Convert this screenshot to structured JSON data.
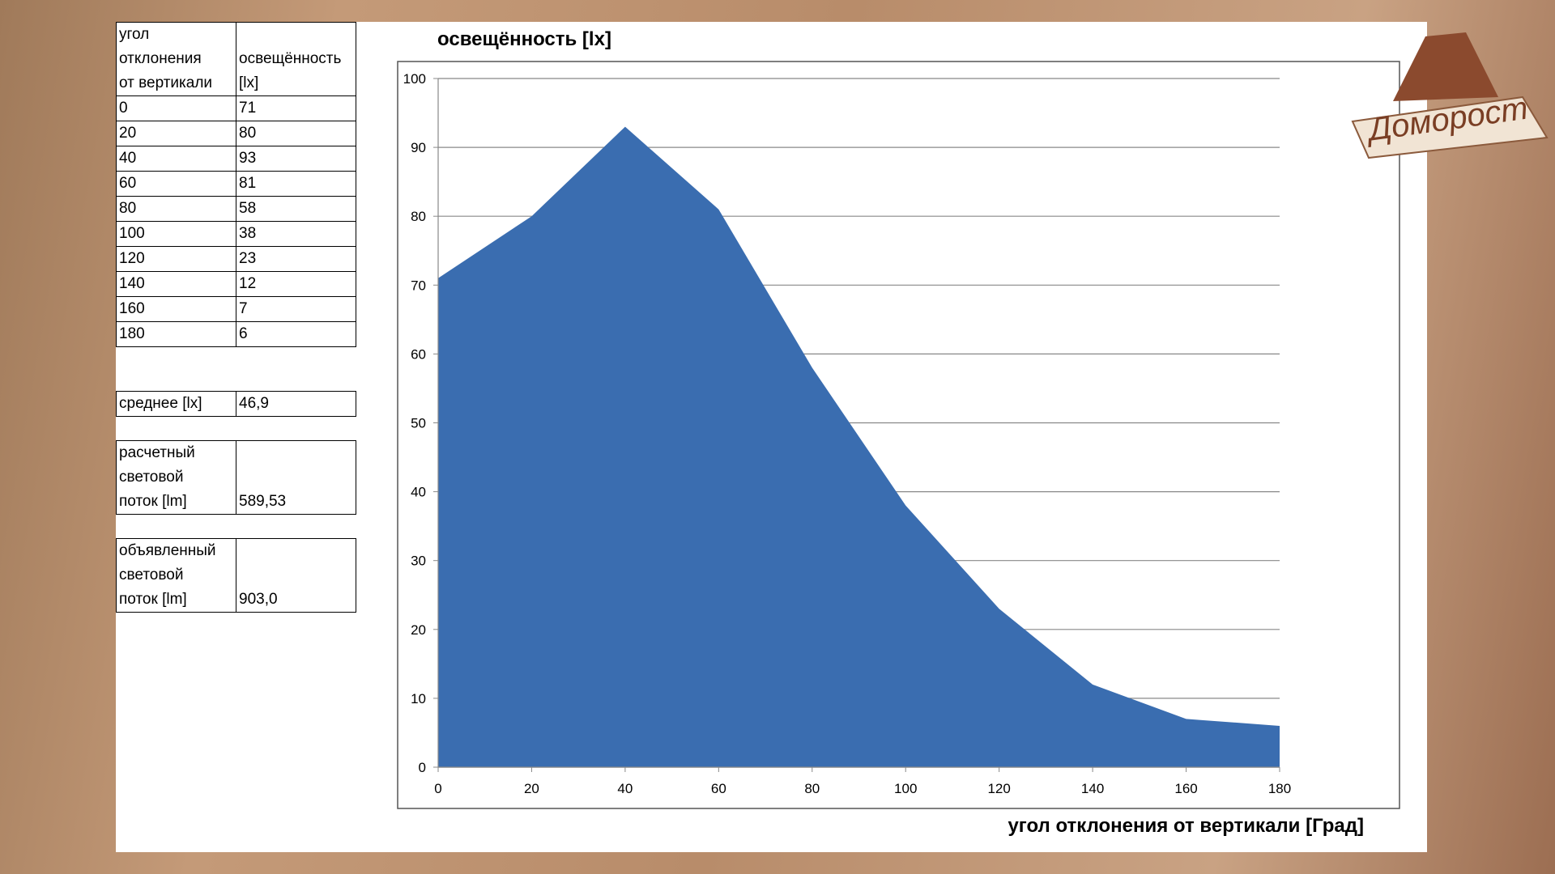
{
  "table": {
    "header": [
      [
        "угол",
        "отклонения",
        "от вертикали"
      ],
      [
        "освещённость",
        "[lx]"
      ]
    ],
    "rows": [
      [
        "0",
        "71"
      ],
      [
        "20",
        "80"
      ],
      [
        "40",
        "93"
      ],
      [
        "60",
        "81"
      ],
      [
        "80",
        "58"
      ],
      [
        "100",
        "38"
      ],
      [
        "120",
        "23"
      ],
      [
        "140",
        "12"
      ],
      [
        "160",
        "7"
      ],
      [
        "180",
        "6"
      ]
    ]
  },
  "summary": [
    {
      "label": [
        "среднее  [lx]"
      ],
      "value": "46,9"
    },
    {
      "label": [
        "расчетный",
        "световой",
        "поток  [lm]"
      ],
      "value": "589,53"
    },
    {
      "label": [
        "объявленный",
        "световой",
        "поток  [lm]"
      ],
      "value": "903,0"
    }
  ],
  "logo": "Доморост",
  "chart_data": {
    "type": "area",
    "title": "освещённость [lx]",
    "x_label": "угол отклонения от вертикали  [Град]",
    "x": [
      0,
      20,
      40,
      60,
      80,
      100,
      120,
      140,
      160,
      180
    ],
    "values": [
      71,
      80,
      93,
      81,
      58,
      38,
      23,
      12,
      7,
      6
    ],
    "color": "#3a6db0",
    "xlim": [
      0,
      180
    ],
    "xticks": [
      0,
      20,
      40,
      60,
      80,
      100,
      120,
      140,
      160,
      180
    ],
    "ylim": [
      0,
      100
    ],
    "yticks": [
      0,
      10,
      20,
      30,
      40,
      50,
      60,
      70,
      80,
      90,
      100
    ],
    "grid": true
  }
}
